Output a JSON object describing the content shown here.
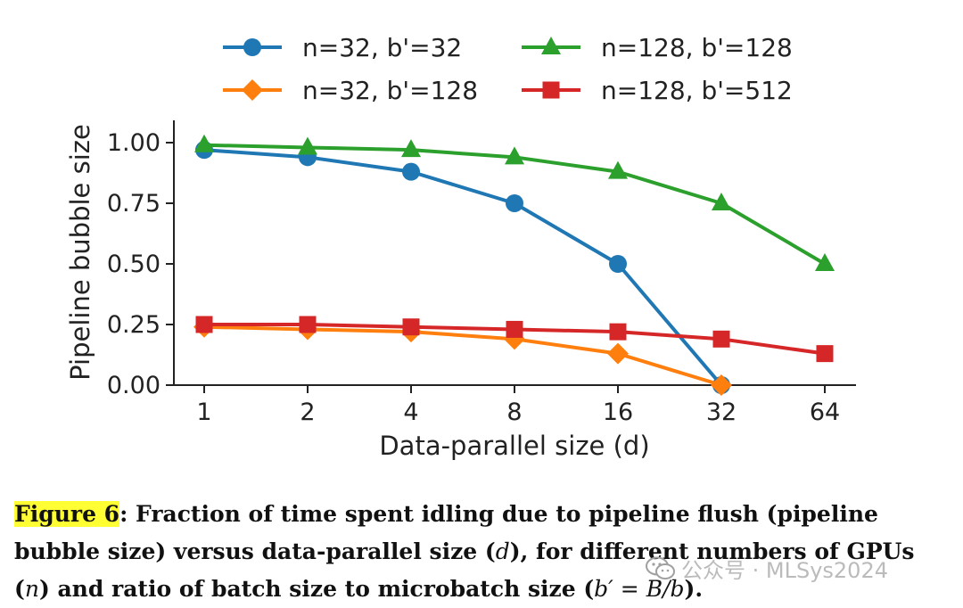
{
  "chart_data": {
    "type": "line",
    "title": "",
    "xlabel": "Data-parallel size (d)",
    "ylabel": "Pipeline bubble size",
    "categories": [
      "1",
      "2",
      "4",
      "8",
      "16",
      "32",
      "64"
    ],
    "yticks": [
      "0.00",
      "0.25",
      "0.50",
      "0.75",
      "1.00"
    ],
    "ylim": [
      0,
      1.1
    ],
    "grid": false,
    "legend_position": "top",
    "series": [
      {
        "name": "n=32, b'=32",
        "color": "#1f77b4",
        "marker": "circle",
        "values": [
          0.97,
          0.94,
          0.88,
          0.75,
          0.5,
          0.0,
          null
        ]
      },
      {
        "name": "n=128, b'=128",
        "color": "#2ca02c",
        "marker": "triangle",
        "values": [
          0.99,
          0.98,
          0.97,
          0.94,
          0.88,
          0.75,
          0.5
        ]
      },
      {
        "name": "n=32, b'=128",
        "color": "#ff7f0e",
        "marker": "diamond",
        "values": [
          0.24,
          0.23,
          0.22,
          0.19,
          0.13,
          0.0,
          null
        ]
      },
      {
        "name": "n=128, b'=512",
        "color": "#d62728",
        "marker": "square",
        "values": [
          0.25,
          0.25,
          0.24,
          0.23,
          0.22,
          0.19,
          0.13
        ]
      }
    ]
  },
  "caption": {
    "label": "Figure 6",
    "part1": ": Fraction of time spent idling due to pipeline flush (pipeline bubble size) versus data-parallel size (",
    "var_d": "d",
    "part2": "), for different numbers of GPUs (",
    "var_n": "n",
    "part3": ") and ratio of batch size to microbatch size (",
    "formula": "b′ = B/b",
    "part4": ")."
  },
  "watermark": {
    "text": "公众号 · MLSys2024",
    "icon": "wechat-icon",
    "color": "#969696"
  }
}
